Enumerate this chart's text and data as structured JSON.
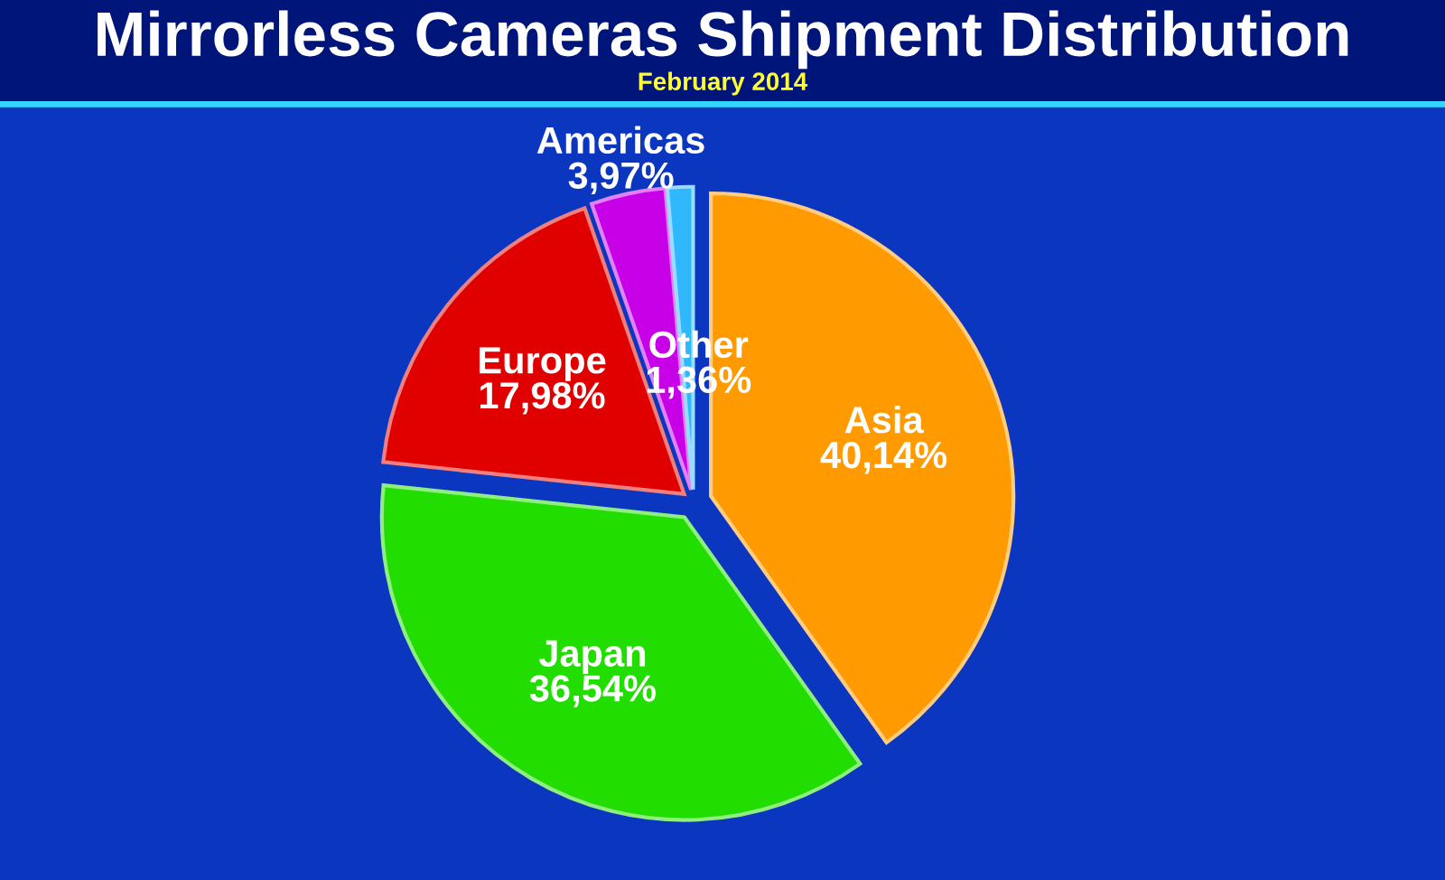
{
  "chart_data": {
    "type": "pie",
    "title": "Mirrorless Cameras Shipment Distribution",
    "subtitle": "February 2014",
    "categories": [
      "Asia",
      "Japan",
      "Europe",
      "Americas",
      "Other"
    ],
    "values": [
      40.14,
      36.54,
      17.98,
      3.97,
      1.36
    ],
    "value_labels": [
      "40,14%",
      "36,54%",
      "17,98%",
      "3,97%",
      "1,36%"
    ],
    "colors": [
      "#ff9a00",
      "#22dd00",
      "#e00000",
      "#c800e8",
      "#30b8ff"
    ]
  }
}
